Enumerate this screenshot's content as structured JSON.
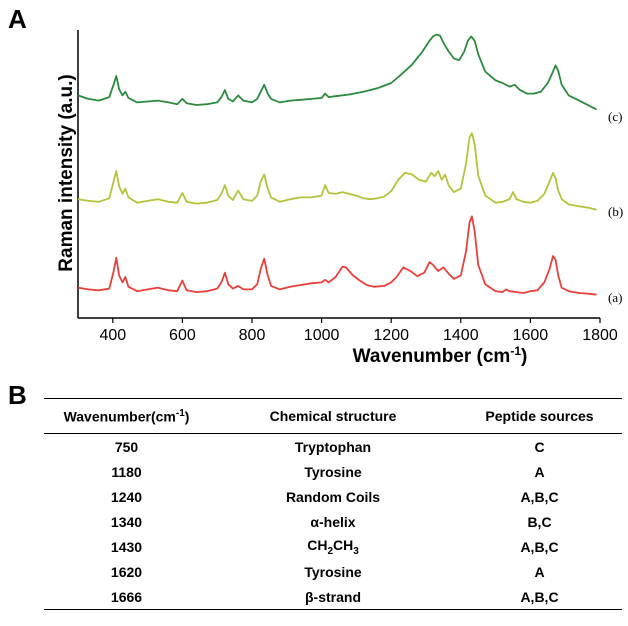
{
  "panels": {
    "a": "A",
    "b": "B"
  },
  "chart_data": {
    "type": "line",
    "ylabel": "Raman intensity (a.u.)",
    "xlabel": "Wavenumber (cm",
    "xlabel_sup": "-1",
    "xlabel_close": ")",
    "xlim": [
      300,
      1800
    ],
    "xticks": [
      400,
      600,
      800,
      1000,
      1200,
      1400,
      1600,
      1800
    ],
    "yticks_shown": false,
    "series": [
      {
        "name": "(a)",
        "color": "#e8413b",
        "x": [
          300,
          330,
          360,
          390,
          402,
          410,
          418,
          428,
          436,
          445,
          470,
          500,
          530,
          560,
          585,
          600,
          612,
          640,
          670,
          700,
          712,
          722,
          732,
          745,
          760,
          775,
          800,
          815,
          825,
          835,
          845,
          855,
          880,
          910,
          940,
          970,
          1000,
          1010,
          1020,
          1040,
          1060,
          1070,
          1090,
          1110,
          1130,
          1150,
          1180,
          1200,
          1215,
          1235,
          1255,
          1275,
          1295,
          1310,
          1320,
          1335,
          1350,
          1365,
          1380,
          1400,
          1415,
          1425,
          1432,
          1440,
          1450,
          1470,
          1500,
          1520,
          1530,
          1540,
          1560,
          1580,
          1600,
          1620,
          1640,
          1655,
          1665,
          1672,
          1680,
          1690,
          1710,
          1740,
          1770,
          1790
        ],
        "y": [
          0.14,
          0.12,
          0.11,
          0.13,
          0.32,
          0.48,
          0.28,
          0.2,
          0.26,
          0.15,
          0.1,
          0.12,
          0.14,
          0.11,
          0.1,
          0.22,
          0.11,
          0.09,
          0.1,
          0.13,
          0.2,
          0.31,
          0.18,
          0.13,
          0.16,
          0.12,
          0.12,
          0.18,
          0.35,
          0.47,
          0.28,
          0.16,
          0.12,
          0.15,
          0.17,
          0.19,
          0.2,
          0.23,
          0.2,
          0.26,
          0.38,
          0.37,
          0.28,
          0.22,
          0.17,
          0.15,
          0.16,
          0.2,
          0.26,
          0.37,
          0.33,
          0.27,
          0.31,
          0.43,
          0.4,
          0.33,
          0.37,
          0.3,
          0.24,
          0.28,
          0.55,
          0.88,
          0.95,
          0.78,
          0.4,
          0.18,
          0.1,
          0.09,
          0.12,
          0.1,
          0.09,
          0.08,
          0.1,
          0.11,
          0.2,
          0.35,
          0.5,
          0.46,
          0.28,
          0.14,
          0.1,
          0.08,
          0.07,
          0.06
        ]
      },
      {
        "name": "(b)",
        "color": "#b5c23c",
        "x": [
          300,
          330,
          360,
          390,
          402,
          410,
          418,
          428,
          436,
          445,
          470,
          500,
          530,
          560,
          585,
          600,
          612,
          640,
          670,
          700,
          712,
          722,
          732,
          745,
          760,
          775,
          800,
          815,
          825,
          835,
          845,
          855,
          880,
          910,
          940,
          970,
          1000,
          1010,
          1020,
          1040,
          1060,
          1080,
          1100,
          1120,
          1140,
          1160,
          1180,
          1200,
          1220,
          1240,
          1260,
          1280,
          1300,
          1315,
          1325,
          1335,
          1345,
          1355,
          1365,
          1380,
          1400,
          1415,
          1425,
          1432,
          1440,
          1450,
          1470,
          1500,
          1520,
          1540,
          1550,
          1560,
          1580,
          1600,
          1620,
          1640,
          1655,
          1665,
          1672,
          1680,
          1690,
          1710,
          1740,
          1770,
          1790
        ],
        "y": [
          0.18,
          0.16,
          0.15,
          0.19,
          0.38,
          0.5,
          0.33,
          0.24,
          0.3,
          0.2,
          0.14,
          0.16,
          0.18,
          0.15,
          0.14,
          0.25,
          0.15,
          0.13,
          0.14,
          0.17,
          0.24,
          0.34,
          0.22,
          0.17,
          0.28,
          0.18,
          0.16,
          0.22,
          0.38,
          0.46,
          0.3,
          0.2,
          0.15,
          0.18,
          0.2,
          0.2,
          0.22,
          0.34,
          0.25,
          0.24,
          0.26,
          0.24,
          0.22,
          0.19,
          0.18,
          0.19,
          0.21,
          0.27,
          0.4,
          0.48,
          0.46,
          0.4,
          0.38,
          0.48,
          0.44,
          0.5,
          0.4,
          0.46,
          0.34,
          0.26,
          0.3,
          0.58,
          0.88,
          0.93,
          0.8,
          0.45,
          0.22,
          0.14,
          0.15,
          0.18,
          0.26,
          0.18,
          0.15,
          0.14,
          0.16,
          0.24,
          0.38,
          0.48,
          0.42,
          0.28,
          0.18,
          0.12,
          0.1,
          0.08,
          0.06
        ]
      },
      {
        "name": "(c)",
        "color": "#2b8a3e",
        "x": [
          300,
          330,
          360,
          390,
          402,
          410,
          418,
          428,
          436,
          445,
          470,
          500,
          530,
          560,
          585,
          600,
          612,
          640,
          670,
          700,
          712,
          722,
          732,
          745,
          760,
          775,
          800,
          815,
          825,
          835,
          845,
          855,
          880,
          910,
          940,
          970,
          1000,
          1010,
          1020,
          1040,
          1080,
          1120,
          1160,
          1200,
          1230,
          1260,
          1290,
          1310,
          1320,
          1330,
          1340,
          1350,
          1365,
          1380,
          1395,
          1410,
          1420,
          1430,
          1440,
          1450,
          1470,
          1500,
          1520,
          1540,
          1555,
          1570,
          1590,
          1610,
          1630,
          1650,
          1665,
          1672,
          1680,
          1690,
          1710,
          1740,
          1770,
          1790
        ],
        "y": [
          0.28,
          0.24,
          0.22,
          0.26,
          0.4,
          0.5,
          0.35,
          0.28,
          0.32,
          0.25,
          0.2,
          0.21,
          0.22,
          0.2,
          0.18,
          0.24,
          0.19,
          0.17,
          0.18,
          0.2,
          0.26,
          0.34,
          0.24,
          0.21,
          0.28,
          0.22,
          0.2,
          0.24,
          0.32,
          0.4,
          0.3,
          0.24,
          0.2,
          0.22,
          0.23,
          0.24,
          0.25,
          0.3,
          0.26,
          0.27,
          0.29,
          0.32,
          0.36,
          0.42,
          0.52,
          0.63,
          0.78,
          0.9,
          0.95,
          0.97,
          0.96,
          0.88,
          0.78,
          0.7,
          0.68,
          0.78,
          0.9,
          0.95,
          0.9,
          0.75,
          0.55,
          0.45,
          0.42,
          0.38,
          0.4,
          0.34,
          0.3,
          0.3,
          0.32,
          0.42,
          0.55,
          0.62,
          0.56,
          0.4,
          0.28,
          0.22,
          0.16,
          0.12
        ]
      }
    ]
  },
  "table": {
    "headers": [
      "Wavenumber(cm",
      "-1",
      ")",
      "Chemical structure",
      "Peptide sources"
    ],
    "rows": [
      {
        "wavenumber": "750",
        "structure": "Tryptophan",
        "sources": "C"
      },
      {
        "wavenumber": "1180",
        "structure": "Tyrosine",
        "sources": "A"
      },
      {
        "wavenumber": "1240",
        "structure": "Random Coils",
        "sources": "A,B,C"
      },
      {
        "wavenumber": "1340",
        "structure": "α-helix",
        "sources": "B,C"
      },
      {
        "wavenumber": "1430",
        "structure": "CH",
        "structure_sub1": "2",
        "structure_mid": "CH",
        "structure_sub2": "3",
        "sources": "A,B,C"
      },
      {
        "wavenumber": "1620",
        "structure": "Tyrosine",
        "sources": "A"
      },
      {
        "wavenumber": "1666",
        "structure": "β-strand",
        "sources": "A,B,C"
      }
    ]
  }
}
